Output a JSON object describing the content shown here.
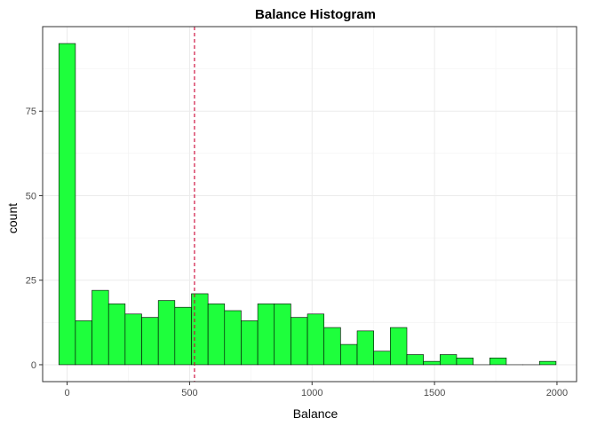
{
  "chart_data": {
    "type": "bar",
    "title": "Balance Histogram",
    "xlabel": "Balance",
    "ylabel": "count",
    "xlim": [
      -100,
      2080
    ],
    "ylim": [
      -5,
      100
    ],
    "bin_width": 67.67,
    "bins": [
      {
        "x0": -33.83,
        "x1": 33.83,
        "count": 95
      },
      {
        "x0": 33.83,
        "x1": 101.5,
        "count": 13
      },
      {
        "x0": 101.5,
        "x1": 169.17,
        "count": 22
      },
      {
        "x0": 169.17,
        "x1": 236.83,
        "count": 18
      },
      {
        "x0": 236.83,
        "x1": 304.5,
        "count": 15
      },
      {
        "x0": 304.5,
        "x1": 372.17,
        "count": 14
      },
      {
        "x0": 372.17,
        "x1": 439.83,
        "count": 19
      },
      {
        "x0": 439.83,
        "x1": 507.5,
        "count": 17
      },
      {
        "x0": 507.5,
        "x1": 575.17,
        "count": 21
      },
      {
        "x0": 575.17,
        "x1": 642.83,
        "count": 18
      },
      {
        "x0": 642.83,
        "x1": 710.5,
        "count": 16
      },
      {
        "x0": 710.5,
        "x1": 778.17,
        "count": 13
      },
      {
        "x0": 778.17,
        "x1": 845.83,
        "count": 18
      },
      {
        "x0": 845.83,
        "x1": 913.5,
        "count": 18
      },
      {
        "x0": 913.5,
        "x1": 981.17,
        "count": 14
      },
      {
        "x0": 981.17,
        "x1": 1048.83,
        "count": 15
      },
      {
        "x0": 1048.83,
        "x1": 1116.5,
        "count": 11
      },
      {
        "x0": 1116.5,
        "x1": 1184.17,
        "count": 6
      },
      {
        "x0": 1184.17,
        "x1": 1251.83,
        "count": 10
      },
      {
        "x0": 1251.83,
        "x1": 1319.5,
        "count": 4
      },
      {
        "x0": 1319.5,
        "x1": 1387.17,
        "count": 11
      },
      {
        "x0": 1387.17,
        "x1": 1454.83,
        "count": 3
      },
      {
        "x0": 1454.83,
        "x1": 1522.5,
        "count": 1
      },
      {
        "x0": 1522.5,
        "x1": 1590.17,
        "count": 3
      },
      {
        "x0": 1590.17,
        "x1": 1657.83,
        "count": 2
      },
      {
        "x0": 1657.83,
        "x1": 1725.5,
        "count": 0
      },
      {
        "x0": 1725.5,
        "x1": 1793.17,
        "count": 2
      },
      {
        "x0": 1793.17,
        "x1": 1860.83,
        "count": 0
      },
      {
        "x0": 1860.83,
        "x1": 1928.5,
        "count": 0
      },
      {
        "x0": 1928.5,
        "x1": 1996.17,
        "count": 1
      }
    ],
    "x_ticks": [
      0,
      500,
      1000,
      1500,
      2000
    ],
    "y_ticks": [
      0,
      25,
      50,
      75
    ],
    "reference_line": {
      "x": 520,
      "style": "dashed",
      "color": "#cc0033"
    },
    "bar_fill": "#1eff3c",
    "bar_outline": "#000000",
    "grid": true,
    "legend": "none"
  }
}
